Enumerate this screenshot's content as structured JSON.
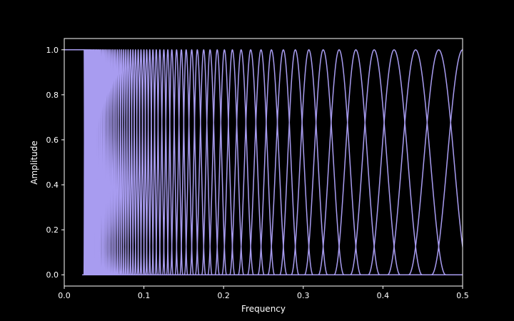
{
  "chart_data": {
    "type": "line",
    "title": "",
    "xlabel": "Frequency",
    "ylabel": "Amplitude",
    "xlim": [
      0.0,
      0.5
    ],
    "ylim": [
      -0.05,
      1.05
    ],
    "xticks": [
      "0.0",
      "0.1",
      "0.2",
      "0.3",
      "0.4",
      "0.5"
    ],
    "xtick_values": [
      0.0,
      0.1,
      0.2,
      0.3,
      0.4,
      0.5
    ],
    "yticks": [
      "0.0",
      "0.2",
      "0.4",
      "0.6",
      "0.8",
      "1.0"
    ],
    "ytick_values": [
      0.0,
      0.2,
      0.4,
      0.6,
      0.8,
      1.0
    ],
    "grid": false,
    "legend": "none",
    "line_color": "#a89cf0",
    "background_color": "#000000",
    "axes_color": "#ffffff",
    "description": "Bank of overlapping raised-cosine filter responses (amplitude 0 to 1) whose peaks are logarithmically spaced in frequency; the first filter is a low-pass at amplitude 1.0 from 0.0 to about 0.025.",
    "lowpass_edge": 0.025,
    "filter_peaks": [
      0.0257,
      0.0265,
      0.0273,
      0.0281,
      0.029,
      0.0299,
      0.0308,
      0.0318,
      0.0328,
      0.0339,
      0.035,
      0.0361,
      0.0373,
      0.0385,
      0.0397,
      0.041,
      0.0423,
      0.0437,
      0.0451,
      0.0466,
      0.0481,
      0.0497,
      0.0513,
      0.053,
      0.0548,
      0.0566,
      0.0585,
      0.0605,
      0.0626,
      0.0648,
      0.0671,
      0.0696,
      0.072,
      0.0746,
      0.0773,
      0.0801,
      0.0831,
      0.0862,
      0.0894,
      0.0928,
      0.0963,
      0.1,
      0.1035,
      0.1073,
      0.1113,
      0.1155,
      0.12,
      0.125,
      0.13,
      0.135,
      0.141,
      0.147,
      0.153,
      0.16,
      0.167,
      0.175,
      0.183,
      0.192,
      0.201,
      0.211,
      0.222,
      0.234,
      0.247,
      0.26,
      0.275,
      0.29,
      0.307,
      0.325,
      0.345,
      0.366,
      0.389,
      0.414,
      0.441,
      0.47,
      0.5
    ]
  }
}
